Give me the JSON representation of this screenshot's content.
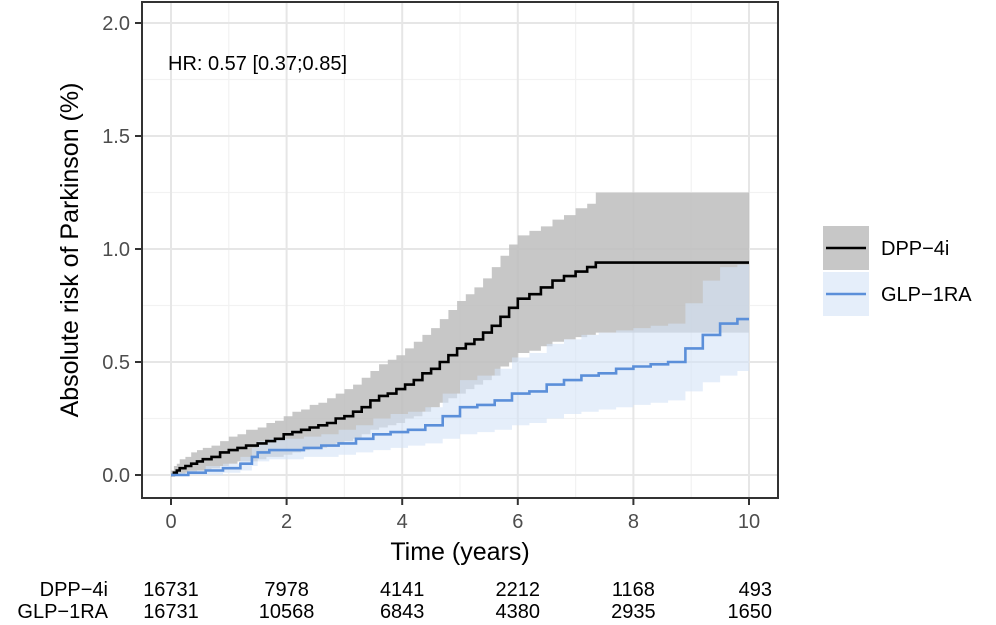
{
  "chart_data": {
    "type": "line",
    "subtype": "step",
    "title": "",
    "xlabel": "Time (years)",
    "ylabel": "Absolute risk of Parkinson (%)",
    "xlim": [
      0,
      10
    ],
    "ylim": [
      0,
      2.0
    ],
    "x_ticks": [
      0,
      2,
      4,
      6,
      8,
      10
    ],
    "y_ticks": [
      0.0,
      0.5,
      1.0,
      1.5,
      2.0
    ],
    "x_tick_labels": [
      "0",
      "2",
      "4",
      "6",
      "8",
      "10"
    ],
    "y_tick_labels": [
      "0.0",
      "0.5",
      "1.0",
      "1.5",
      "2.0"
    ],
    "grid": true,
    "legend_position": "right",
    "annotation": "HR: 0.57 [0.37;0.85]",
    "series": [
      {
        "name": "DPP−4i",
        "color": "#000000",
        "band_color": "#bdbdbd",
        "x": [
          0,
          0.05,
          0.1,
          0.15,
          0.25,
          0.35,
          0.45,
          0.55,
          0.7,
          0.85,
          1.0,
          1.15,
          1.3,
          1.5,
          1.65,
          1.8,
          1.95,
          2.1,
          2.25,
          2.4,
          2.55,
          2.7,
          2.85,
          3.0,
          3.15,
          3.3,
          3.45,
          3.6,
          3.75,
          3.9,
          4.05,
          4.2,
          4.35,
          4.5,
          4.65,
          4.8,
          4.95,
          5.1,
          5.25,
          5.4,
          5.55,
          5.7,
          5.85,
          6.0,
          6.2,
          6.4,
          6.6,
          6.8,
          7.0,
          7.2,
          7.35,
          7.8,
          8.5,
          9.2,
          10.0
        ],
        "y": [
          0.0,
          0.01,
          0.02,
          0.03,
          0.04,
          0.05,
          0.06,
          0.07,
          0.08,
          0.1,
          0.11,
          0.12,
          0.13,
          0.14,
          0.15,
          0.16,
          0.18,
          0.19,
          0.2,
          0.21,
          0.22,
          0.23,
          0.25,
          0.26,
          0.28,
          0.3,
          0.33,
          0.35,
          0.36,
          0.38,
          0.4,
          0.42,
          0.45,
          0.47,
          0.5,
          0.53,
          0.56,
          0.58,
          0.6,
          0.63,
          0.66,
          0.7,
          0.74,
          0.78,
          0.8,
          0.83,
          0.86,
          0.88,
          0.9,
          0.92,
          0.94,
          0.94,
          0.94,
          0.94,
          0.94
        ],
        "lower": [
          0.0,
          0.0,
          0.0,
          0.0,
          0.01,
          0.01,
          0.02,
          0.02,
          0.03,
          0.04,
          0.05,
          0.06,
          0.06,
          0.07,
          0.08,
          0.08,
          0.09,
          0.1,
          0.11,
          0.12,
          0.12,
          0.13,
          0.14,
          0.15,
          0.16,
          0.18,
          0.2,
          0.21,
          0.22,
          0.23,
          0.25,
          0.26,
          0.28,
          0.3,
          0.32,
          0.34,
          0.36,
          0.38,
          0.4,
          0.42,
          0.44,
          0.48,
          0.5,
          0.54,
          0.55,
          0.57,
          0.59,
          0.6,
          0.61,
          0.62,
          0.63,
          0.63,
          0.63,
          0.63,
          0.63
        ],
        "upper": [
          0.02,
          0.04,
          0.05,
          0.07,
          0.08,
          0.1,
          0.11,
          0.12,
          0.13,
          0.15,
          0.17,
          0.18,
          0.2,
          0.21,
          0.23,
          0.24,
          0.26,
          0.28,
          0.29,
          0.31,
          0.32,
          0.34,
          0.36,
          0.38,
          0.4,
          0.43,
          0.46,
          0.49,
          0.51,
          0.53,
          0.56,
          0.59,
          0.62,
          0.65,
          0.69,
          0.73,
          0.77,
          0.8,
          0.83,
          0.87,
          0.92,
          0.97,
          1.02,
          1.06,
          1.08,
          1.1,
          1.13,
          1.15,
          1.18,
          1.2,
          1.25,
          1.25,
          1.25,
          1.25,
          1.25
        ]
      },
      {
        "name": "GLP−1RA",
        "color": "#5b8fd9",
        "band_color": "#d4e3f7",
        "x": [
          0,
          0.3,
          0.6,
          0.9,
          1.2,
          1.4,
          1.5,
          1.7,
          2.0,
          2.3,
          2.6,
          2.9,
          3.2,
          3.5,
          3.8,
          4.1,
          4.4,
          4.7,
          5.0,
          5.3,
          5.6,
          5.9,
          6.2,
          6.5,
          6.8,
          7.1,
          7.4,
          7.7,
          8.0,
          8.3,
          8.6,
          8.9,
          9.2,
          9.5,
          9.8,
          10.0
        ],
        "y": [
          0.0,
          0.01,
          0.02,
          0.03,
          0.05,
          0.08,
          0.1,
          0.11,
          0.11,
          0.12,
          0.13,
          0.14,
          0.16,
          0.18,
          0.19,
          0.2,
          0.22,
          0.26,
          0.3,
          0.31,
          0.33,
          0.36,
          0.37,
          0.4,
          0.42,
          0.44,
          0.45,
          0.47,
          0.48,
          0.49,
          0.5,
          0.56,
          0.62,
          0.67,
          0.69,
          0.69
        ],
        "lower": [
          0.0,
          0.0,
          0.0,
          0.01,
          0.02,
          0.04,
          0.06,
          0.07,
          0.07,
          0.08,
          0.08,
          0.09,
          0.1,
          0.11,
          0.12,
          0.13,
          0.14,
          0.16,
          0.18,
          0.19,
          0.2,
          0.22,
          0.23,
          0.25,
          0.27,
          0.28,
          0.29,
          0.3,
          0.31,
          0.32,
          0.33,
          0.37,
          0.41,
          0.44,
          0.46,
          0.46
        ],
        "upper": [
          0.01,
          0.02,
          0.04,
          0.05,
          0.08,
          0.12,
          0.15,
          0.16,
          0.16,
          0.17,
          0.18,
          0.2,
          0.22,
          0.25,
          0.27,
          0.28,
          0.3,
          0.36,
          0.42,
          0.44,
          0.47,
          0.52,
          0.54,
          0.58,
          0.6,
          0.62,
          0.63,
          0.64,
          0.65,
          0.66,
          0.67,
          0.76,
          0.86,
          0.92,
          0.93,
          0.93
        ]
      }
    ],
    "risk_table": {
      "times": [
        0,
        2,
        4,
        6,
        8,
        10
      ],
      "rows": [
        {
          "name": "DPP−4i",
          "values": [
            "16731",
            "7978",
            "4141",
            "2212",
            "1168",
            "493"
          ]
        },
        {
          "name": "GLP−1RA",
          "values": [
            "16731",
            "10568",
            "6843",
            "4380",
            "2935",
            "1650"
          ]
        }
      ]
    }
  }
}
